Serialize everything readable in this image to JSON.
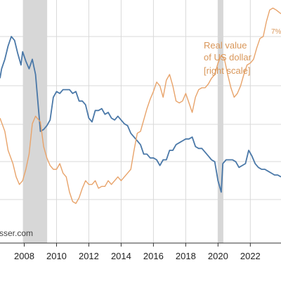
{
  "chart_data": {
    "type": "line",
    "title": "",
    "xlabel": "",
    "ylabel": "",
    "x_tick_labels": [
      "2008",
      "2010",
      "2012",
      "2014",
      "2016",
      "2018",
      "2020",
      "2022"
    ],
    "xlim": [
      2006.5,
      2023.9
    ],
    "left_ylim": [
      0,
      100
    ],
    "right_ylim": [
      0,
      100
    ],
    "grid": true,
    "recession_shading": [
      [
        2007.92,
        2009.42
      ],
      [
        2020.0,
        2020.33
      ]
    ],
    "annotations": {
      "right_series_label_lines": [
        "Real value",
        "of US dollar",
        "[right scale]"
      ],
      "top_right_fragment": "7%",
      "watermark": "sser.com"
    },
    "series": [
      {
        "axis": "left",
        "color": "#4a78a8",
        "x": [
          2006.5,
          2006.6,
          2006.8,
          2007.0,
          2007.2,
          2007.4,
          2007.6,
          2007.8,
          2007.9,
          2008.1,
          2008.3,
          2008.5,
          2008.7,
          2008.8,
          2009.0,
          2009.2,
          2009.4,
          2009.6,
          2009.8,
          2010.0,
          2010.2,
          2010.4,
          2010.6,
          2010.8,
          2011.0,
          2011.2,
          2011.4,
          2011.6,
          2011.8,
          2012.0,
          2012.2,
          2012.4,
          2012.6,
          2012.8,
          2013.0,
          2013.2,
          2013.4,
          2013.6,
          2013.8,
          2014.0,
          2014.2,
          2014.4,
          2014.6,
          2014.8,
          2015.0,
          2015.2,
          2015.4,
          2015.6,
          2015.8,
          2016.0,
          2016.2,
          2016.4,
          2016.6,
          2016.8,
          2017.0,
          2017.2,
          2017.4,
          2017.6,
          2017.8,
          2018.0,
          2018.2,
          2018.4,
          2018.6,
          2018.8,
          2019.0,
          2019.2,
          2019.4,
          2019.6,
          2019.8,
          2020.0,
          2020.2,
          2020.3,
          2020.5,
          2020.7,
          2020.9,
          2021.1,
          2021.3,
          2021.5,
          2021.7,
          2021.9,
          2022.1,
          2022.3,
          2022.5,
          2022.7,
          2022.9,
          2023.1,
          2023.3,
          2023.5,
          2023.7,
          2023.9
        ],
        "values": [
          78,
          83,
          88,
          95,
          100,
          98,
          91,
          85,
          92,
          87,
          83,
          88,
          80,
          70,
          50,
          51,
          53,
          56,
          68,
          71,
          70,
          72,
          72,
          72,
          70,
          71,
          66,
          66,
          64,
          57,
          55,
          61,
          61,
          62,
          59,
          60,
          57,
          56,
          58,
          56,
          54,
          53,
          49,
          47,
          45,
          43,
          38,
          38,
          36,
          36,
          35,
          32,
          35,
          35,
          40,
          40,
          43,
          44,
          45,
          46,
          46,
          47,
          42,
          41,
          41,
          39,
          37,
          35,
          34,
          24,
          18,
          33,
          35,
          35,
          35,
          34,
          31,
          32,
          33,
          40,
          37,
          33,
          31,
          30,
          30,
          29,
          28,
          27,
          27,
          26
        ]
      },
      {
        "axis": "right",
        "color": "#e8a36a",
        "x": [
          2006.5,
          2006.8,
          2007.0,
          2007.3,
          2007.5,
          2007.7,
          2007.9,
          2008.1,
          2008.3,
          2008.5,
          2008.7,
          2009.0,
          2009.2,
          2009.4,
          2009.6,
          2009.8,
          2010.0,
          2010.2,
          2010.4,
          2010.6,
          2010.8,
          2011.0,
          2011.2,
          2011.4,
          2011.6,
          2011.8,
          2012.0,
          2012.2,
          2012.4,
          2012.6,
          2012.8,
          2013.0,
          2013.2,
          2013.4,
          2013.6,
          2013.8,
          2014.0,
          2014.2,
          2014.4,
          2014.6,
          2014.8,
          2015.0,
          2015.2,
          2015.4,
          2015.6,
          2015.8,
          2016.0,
          2016.2,
          2016.4,
          2016.6,
          2016.8,
          2017.0,
          2017.2,
          2017.4,
          2017.6,
          2017.8,
          2018.0,
          2018.2,
          2018.4,
          2018.6,
          2018.8,
          2019.0,
          2019.2,
          2019.4,
          2019.6,
          2019.8,
          2020.0,
          2020.2,
          2020.4,
          2020.6,
          2020.8,
          2021.0,
          2021.2,
          2021.4,
          2021.6,
          2021.8,
          2022.0,
          2022.2,
          2022.4,
          2022.6,
          2022.8,
          2023.0,
          2023.2,
          2023.4,
          2023.6,
          2023.9
        ],
        "values": [
          57,
          50,
          40,
          33,
          26,
          22,
          24,
          30,
          38,
          54,
          58,
          55,
          42,
          36,
          32,
          30,
          30,
          33,
          28,
          26,
          18,
          13,
          12,
          15,
          20,
          24,
          22,
          22,
          24,
          20,
          21,
          21,
          24,
          22,
          24,
          26,
          24,
          26,
          28,
          30,
          40,
          49,
          50,
          56,
          62,
          67,
          71,
          76,
          74,
          68,
          77,
          80,
          74,
          66,
          65,
          66,
          70,
          65,
          60,
          68,
          72,
          73,
          73,
          75,
          78,
          80,
          86,
          90,
          88,
          80,
          73,
          68,
          70,
          74,
          80,
          85,
          86,
          88,
          94,
          99,
          100,
          108,
          114,
          115,
          114,
          112
        ]
      }
    ]
  }
}
